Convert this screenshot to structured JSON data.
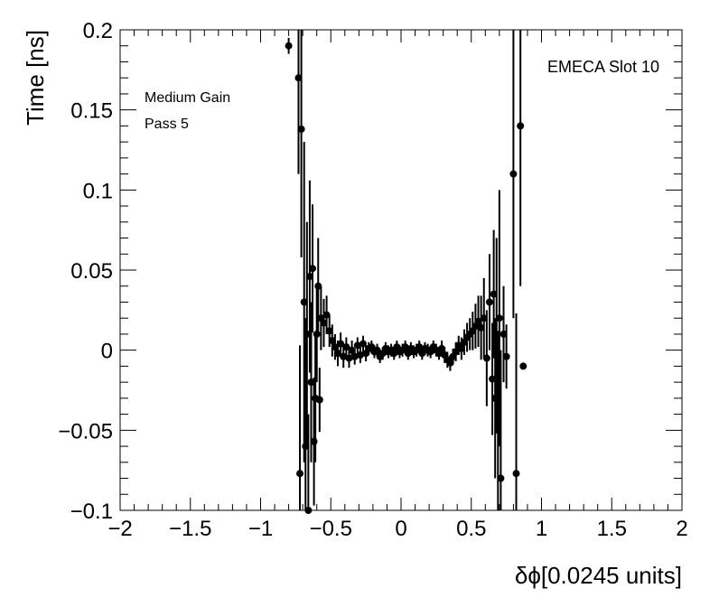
{
  "chart_data": {
    "type": "scatter",
    "title": "",
    "xlabel": "δϕ[0.0245 units]",
    "ylabel": "Time [ns]",
    "xlim": [
      -2,
      2
    ],
    "ylim": [
      -0.1,
      0.2
    ],
    "x_ticks": [
      -2,
      -1.5,
      -1,
      -0.5,
      0,
      0.5,
      1,
      1.5,
      2
    ],
    "x_tick_labels": [
      "−2",
      "−1.5",
      "−1",
      "−0.5",
      "0",
      "0.5",
      "1",
      "1.5",
      "2"
    ],
    "y_ticks": [
      -0.1,
      -0.05,
      0,
      0.05,
      0.1,
      0.15,
      0.2
    ],
    "y_tick_labels": [
      "−0.1",
      "−0.05",
      "0",
      "0.05",
      "0.1",
      "0.15",
      "0.2"
    ],
    "grid": false,
    "marker_color": "#000000",
    "annotations": [
      "Medium Gain",
      "Pass 5",
      "EMECA Slot 10"
    ],
    "series": [
      {
        "points": [
          {
            "x": -0.8,
            "y": 0.19,
            "err": 0.005
          },
          {
            "x": -0.73,
            "y": 0.17,
            "err": 0.06
          },
          {
            "x": -0.71,
            "y": 0.138,
            "err": 0.08
          },
          {
            "x": -0.72,
            "y": -0.077,
            "err": 0.08
          },
          {
            "x": -0.69,
            "y": 0.03,
            "err": 0.1
          },
          {
            "x": -0.68,
            "y": -0.06,
            "err": 0.08
          },
          {
            "x": -0.67,
            "y": 0.01,
            "err": 0.07
          },
          {
            "x": -0.66,
            "y": -0.1,
            "err": 0.06
          },
          {
            "x": -0.65,
            "y": 0.046,
            "err": 0.06
          },
          {
            "x": -0.64,
            "y": -0.02,
            "err": 0.05
          },
          {
            "x": -0.63,
            "y": 0.051,
            "err": 0.04
          },
          {
            "x": -0.62,
            "y": -0.057,
            "err": 0.04
          },
          {
            "x": -0.61,
            "y": -0.03,
            "err": 0.04
          },
          {
            "x": -0.6,
            "y": 0.01,
            "err": 0.03
          },
          {
            "x": -0.59,
            "y": 0.04,
            "err": 0.03
          },
          {
            "x": -0.58,
            "y": -0.031,
            "err": 0.02
          },
          {
            "x": -0.57,
            "y": 0.02,
            "err": 0.02
          },
          {
            "x": -0.55,
            "y": 0.017,
            "err": 0.015
          },
          {
            "x": -0.53,
            "y": 0.022,
            "err": 0.012
          },
          {
            "x": -0.51,
            "y": 0.012,
            "err": 0.01
          },
          {
            "x": -0.49,
            "y": 0.006,
            "err": 0.01
          },
          {
            "x": -0.47,
            "y": 0.002,
            "err": 0.008
          },
          {
            "x": -0.45,
            "y": -0.002,
            "err": 0.008
          },
          {
            "x": -0.43,
            "y": 0.004,
            "err": 0.007
          },
          {
            "x": -0.41,
            "y": -0.004,
            "err": 0.007
          },
          {
            "x": -0.39,
            "y": 0.002,
            "err": 0.006
          },
          {
            "x": -0.37,
            "y": -0.005,
            "err": 0.006
          },
          {
            "x": -0.35,
            "y": 0.0,
            "err": 0.006
          },
          {
            "x": -0.33,
            "y": -0.004,
            "err": 0.005
          },
          {
            "x": -0.31,
            "y": 0.003,
            "err": 0.005
          },
          {
            "x": -0.29,
            "y": -0.003,
            "err": 0.005
          },
          {
            "x": -0.27,
            "y": 0.004,
            "err": 0.005
          },
          {
            "x": -0.25,
            "y": -0.002,
            "err": 0.005
          },
          {
            "x": -0.23,
            "y": 0.001,
            "err": 0.004
          },
          {
            "x": -0.21,
            "y": 0.002,
            "err": 0.004
          },
          {
            "x": -0.19,
            "y": -0.001,
            "err": 0.004
          },
          {
            "x": -0.17,
            "y": 0.0,
            "err": 0.004
          },
          {
            "x": -0.15,
            "y": -0.004,
            "err": 0.004
          },
          {
            "x": -0.13,
            "y": -0.002,
            "err": 0.004
          },
          {
            "x": -0.11,
            "y": 0.001,
            "err": 0.004
          },
          {
            "x": -0.09,
            "y": -0.001,
            "err": 0.004
          },
          {
            "x": -0.07,
            "y": 0.0,
            "err": 0.004
          },
          {
            "x": -0.05,
            "y": -0.002,
            "err": 0.004
          },
          {
            "x": -0.03,
            "y": 0.002,
            "err": 0.004
          },
          {
            "x": -0.01,
            "y": -0.001,
            "err": 0.004
          },
          {
            "x": 0.01,
            "y": 0.0,
            "err": 0.004
          },
          {
            "x": 0.03,
            "y": 0.002,
            "err": 0.004
          },
          {
            "x": 0.05,
            "y": -0.002,
            "err": 0.004
          },
          {
            "x": 0.07,
            "y": 0.001,
            "err": 0.004
          },
          {
            "x": 0.09,
            "y": -0.001,
            "err": 0.004
          },
          {
            "x": 0.11,
            "y": 0.0,
            "err": 0.004
          },
          {
            "x": 0.13,
            "y": 0.002,
            "err": 0.004
          },
          {
            "x": 0.15,
            "y": -0.002,
            "err": 0.004
          },
          {
            "x": 0.17,
            "y": 0.001,
            "err": 0.004
          },
          {
            "x": 0.19,
            "y": 0.0,
            "err": 0.004
          },
          {
            "x": 0.21,
            "y": -0.001,
            "err": 0.004
          },
          {
            "x": 0.23,
            "y": 0.002,
            "err": 0.004
          },
          {
            "x": 0.25,
            "y": 0.0,
            "err": 0.004
          },
          {
            "x": 0.27,
            "y": -0.002,
            "err": 0.004
          },
          {
            "x": 0.29,
            "y": 0.001,
            "err": 0.005
          },
          {
            "x": 0.31,
            "y": -0.003,
            "err": 0.005
          },
          {
            "x": 0.33,
            "y": -0.006,
            "err": 0.005
          },
          {
            "x": 0.35,
            "y": -0.008,
            "err": 0.005
          },
          {
            "x": 0.37,
            "y": -0.004,
            "err": 0.005
          },
          {
            "x": 0.39,
            "y": -0.001,
            "err": 0.006
          },
          {
            "x": 0.41,
            "y": 0.003,
            "err": 0.006
          },
          {
            "x": 0.43,
            "y": 0.001,
            "err": 0.007
          },
          {
            "x": 0.45,
            "y": 0.005,
            "err": 0.008
          },
          {
            "x": 0.47,
            "y": 0.008,
            "err": 0.009
          },
          {
            "x": 0.49,
            "y": 0.01,
            "err": 0.01
          },
          {
            "x": 0.51,
            "y": 0.012,
            "err": 0.012
          },
          {
            "x": 0.53,
            "y": 0.015,
            "err": 0.014
          },
          {
            "x": 0.55,
            "y": 0.018,
            "err": 0.016
          },
          {
            "x": 0.57,
            "y": 0.014,
            "err": 0.02
          },
          {
            "x": 0.59,
            "y": 0.02,
            "err": 0.025
          },
          {
            "x": 0.61,
            "y": -0.005,
            "err": 0.03
          },
          {
            "x": 0.63,
            "y": 0.03,
            "err": 0.03
          },
          {
            "x": 0.65,
            "y": -0.018,
            "err": 0.035
          },
          {
            "x": 0.66,
            "y": 0.035,
            "err": 0.04
          },
          {
            "x": 0.67,
            "y": -0.03,
            "err": 0.05
          },
          {
            "x": 0.68,
            "y": 0.01,
            "err": 0.06
          },
          {
            "x": 0.69,
            "y": -0.05,
            "err": 0.06
          },
          {
            "x": 0.7,
            "y": 0.02,
            "err": 0.08
          },
          {
            "x": 0.71,
            "y": -0.08,
            "err": 0.08
          },
          {
            "x": 0.73,
            "y": 0.01,
            "err": 0.03
          },
          {
            "x": 0.75,
            "y": -0.004,
            "err": 0.02
          },
          {
            "x": 0.8,
            "y": 0.11,
            "err": 0.09
          },
          {
            "x": 0.82,
            "y": -0.077,
            "err": 0.1
          },
          {
            "x": 0.85,
            "y": 0.14,
            "err": 0.1
          },
          {
            "x": 0.87,
            "y": -0.01,
            "err": 0.002
          }
        ]
      }
    ]
  }
}
